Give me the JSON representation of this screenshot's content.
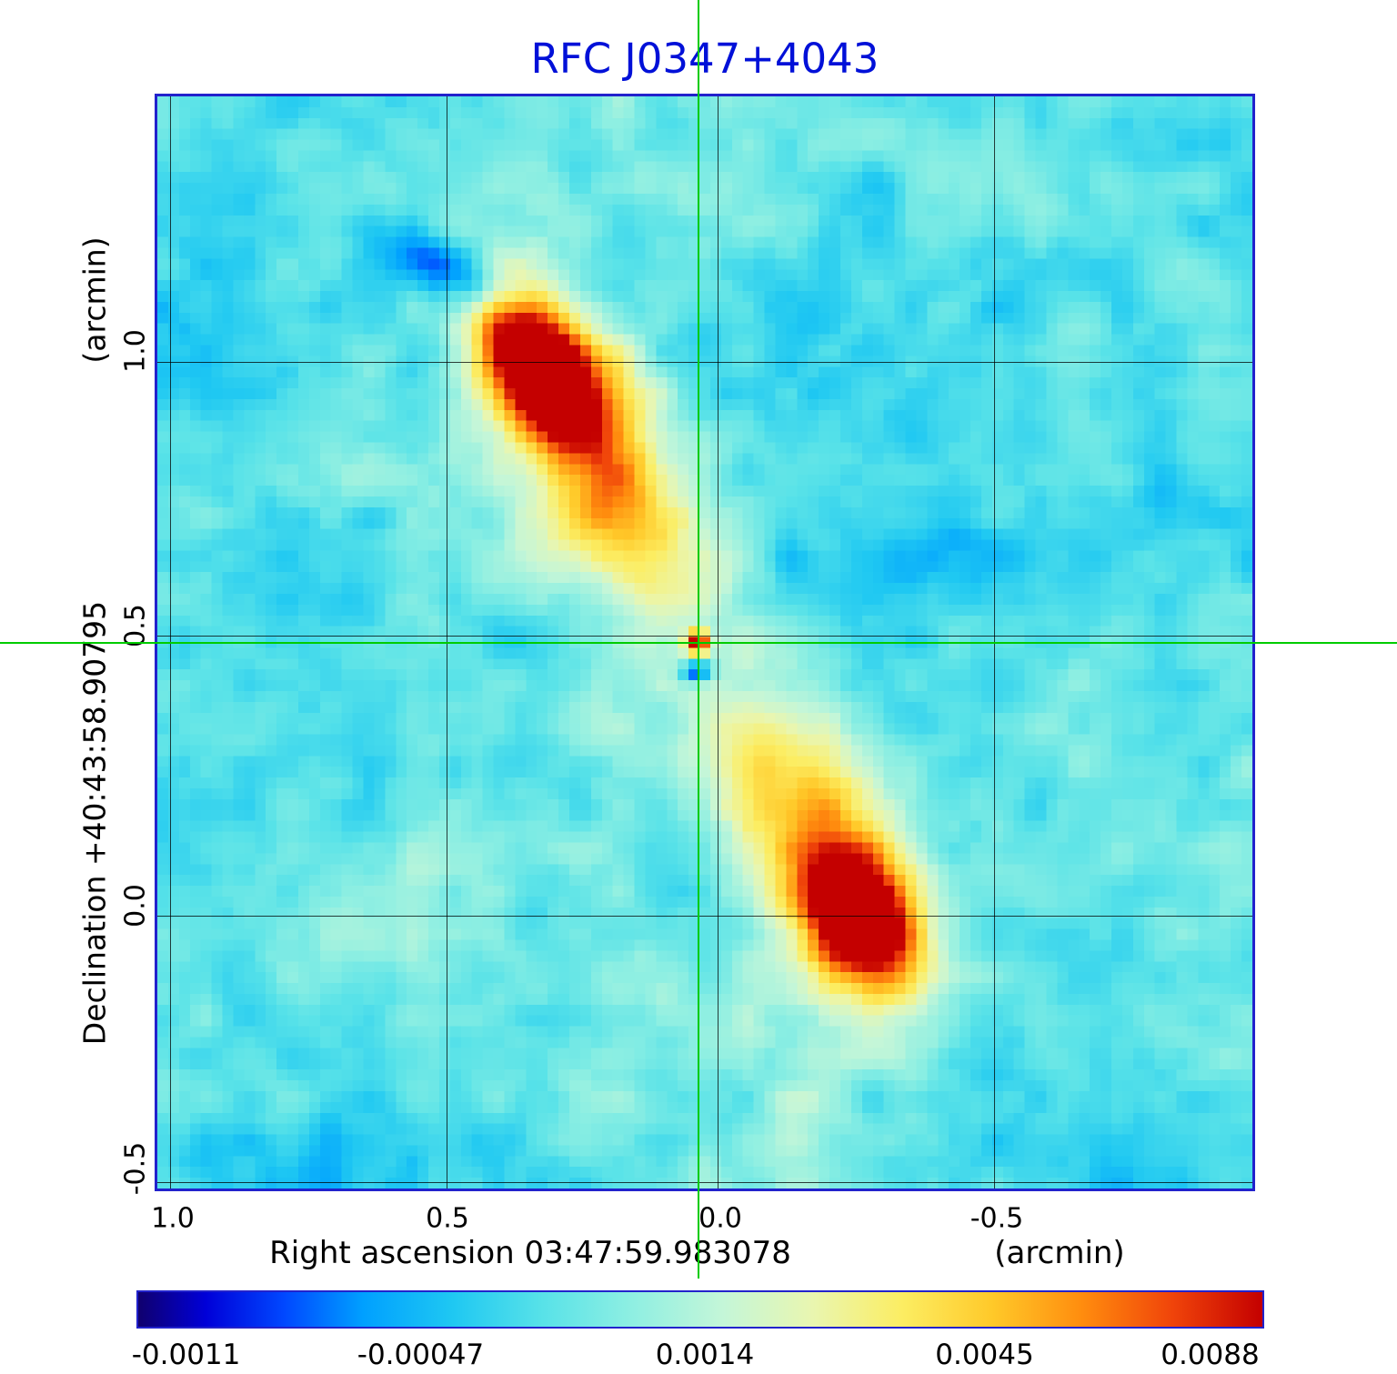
{
  "title": "RFC J0347+4043",
  "axes": {
    "x_title": "Right ascension  03:47:59.983078",
    "x_unit": "(arcmin)",
    "y_title": "Declination  +40:43:58.90795",
    "y_unit": "(arcmin)",
    "x_ticks": [
      "1.0",
      "0.5",
      "0.0",
      "-0.5"
    ],
    "y_ticks": [
      "1.0",
      "0.5",
      "0.0",
      "-0.5"
    ]
  },
  "colorbar": {
    "tick_labels": [
      "-0.0011",
      "-0.00047",
      "0.0014",
      "0.0045",
      "0.0088"
    ],
    "tick_positions": [
      0.044,
      0.252,
      0.504,
      0.752,
      0.952
    ]
  },
  "colors": {
    "title_text": "#0010d8",
    "frame": "#2222cc",
    "crosshair": "#00cc00",
    "grid": "#000000",
    "background_sky": "#5ce2e8"
  },
  "chart_data": {
    "type": "heatmap",
    "title": "RFC J0347+4043",
    "xlabel": "Right ascension 03:47:59.983078 (arcmin)",
    "ylabel": "Declination +40:43:58.90795 (arcmin)",
    "x_range_arcmin": [
      1.02,
      -0.98
    ],
    "y_range_arcmin": [
      1.49,
      -0.51
    ],
    "x_tick_values": [
      1.0,
      0.5,
      0.0,
      -0.5
    ],
    "y_tick_values": [
      1.0,
      0.5,
      0.0,
      -0.5
    ],
    "value_scale_ticks": [
      -0.0011,
      -0.00047,
      0.0014,
      0.0045,
      0.0088
    ],
    "value_range": [
      -0.0013,
      0.0095
    ],
    "grid": true,
    "crosshair_frac": {
      "x": 0.494,
      "y": 0.5
    },
    "crosshair_arcmin": {
      "x": 0.0,
      "y": 0.5
    },
    "colormap_stops": [
      [
        0.0,
        "#10006e"
      ],
      [
        0.06,
        "#0000d8"
      ],
      [
        0.13,
        "#0048ff"
      ],
      [
        0.2,
        "#00a0ff"
      ],
      [
        0.28,
        "#1fc8f2"
      ],
      [
        0.36,
        "#58e2e8"
      ],
      [
        0.44,
        "#8fefe2"
      ],
      [
        0.52,
        "#c4f6d8"
      ],
      [
        0.6,
        "#e9f6b0"
      ],
      [
        0.68,
        "#fced62"
      ],
      [
        0.76,
        "#ffc929"
      ],
      [
        0.84,
        "#ff8c0e"
      ],
      [
        0.92,
        "#f0440a"
      ],
      [
        1.0,
        "#c40000"
      ]
    ],
    "features": [
      {
        "name": "upper-left-lobe-core",
        "x": 0.348,
        "y": 0.245,
        "sx": 0.05,
        "sy": 0.028,
        "angle": 58,
        "amp": 0.65
      },
      {
        "name": "upper-left-lobe",
        "x": 0.37,
        "y": 0.285,
        "sx": 0.1,
        "sy": 0.055,
        "angle": 58,
        "amp": 0.38
      },
      {
        "name": "upper-left-lobe-tail",
        "x": 0.44,
        "y": 0.4,
        "sx": 0.09,
        "sy": 0.045,
        "angle": 60,
        "amp": 0.22
      },
      {
        "name": "central-core",
        "x": 0.494,
        "y": 0.5,
        "sx": 0.008,
        "sy": 0.008,
        "angle": 0,
        "amp": 0.62
      },
      {
        "name": "central-negative-dip",
        "x": 0.492,
        "y": 0.527,
        "sx": 0.01,
        "sy": 0.007,
        "angle": 0,
        "amp": -0.38
      },
      {
        "name": "lower-right-lobe-tail",
        "x": 0.565,
        "y": 0.625,
        "sx": 0.08,
        "sy": 0.05,
        "angle": 55,
        "amp": 0.24
      },
      {
        "name": "lower-right-lobe",
        "x": 0.625,
        "y": 0.72,
        "sx": 0.095,
        "sy": 0.055,
        "angle": 65,
        "amp": 0.4
      },
      {
        "name": "lower-right-lobe-core",
        "x": 0.645,
        "y": 0.76,
        "sx": 0.045,
        "sy": 0.028,
        "angle": 60,
        "amp": 0.6
      },
      {
        "name": "dark-blue-patch",
        "x": 0.272,
        "y": 0.158,
        "sx": 0.05,
        "sy": 0.018,
        "angle": 25,
        "amp": -0.3
      }
    ]
  }
}
